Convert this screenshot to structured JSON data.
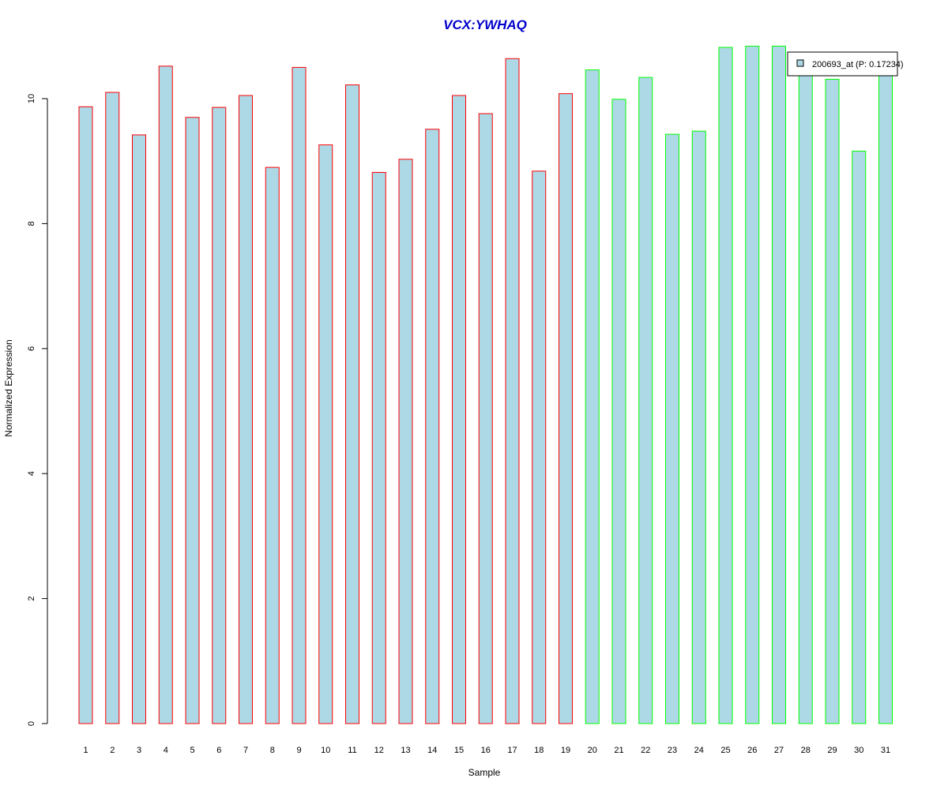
{
  "chart_data": {
    "type": "bar",
    "title": "VCX:YWHAQ",
    "xlabel": "Sample",
    "ylabel": "Normalized Expression",
    "categories": [
      "1",
      "2",
      "3",
      "4",
      "5",
      "6",
      "7",
      "8",
      "9",
      "10",
      "11",
      "12",
      "13",
      "14",
      "15",
      "16",
      "17",
      "18",
      "19",
      "20",
      "21",
      "22",
      "23",
      "24",
      "25",
      "26",
      "27",
      "28",
      "29",
      "30",
      "31"
    ],
    "series": [
      {
        "name": "200693_at (P: 0.17234)",
        "values": [
          9.87,
          10.1,
          9.42,
          10.52,
          9.7,
          9.86,
          10.05,
          8.9,
          10.5,
          9.26,
          10.22,
          8.82,
          9.03,
          9.51,
          10.05,
          9.76,
          10.64,
          8.84,
          10.08,
          10.46,
          9.99,
          10.34,
          9.43,
          9.48,
          10.82,
          10.84,
          10.84,
          10.4,
          10.31,
          9.16,
          10.4
        ]
      }
    ],
    "group_borders": [
      "red",
      "red",
      "red",
      "red",
      "red",
      "red",
      "red",
      "red",
      "red",
      "red",
      "red",
      "red",
      "red",
      "red",
      "red",
      "red",
      "red",
      "red",
      "red",
      "green",
      "green",
      "green",
      "green",
      "green",
      "green",
      "green",
      "green",
      "green",
      "green",
      "green",
      "green"
    ],
    "ylim": [
      0,
      10.95
    ],
    "yticks": [
      0,
      2,
      4,
      6,
      8,
      10
    ],
    "grid": false,
    "legend_position": "top-right",
    "colors": {
      "title": "#0000CC",
      "bar_fill": "#ADD8E6",
      "group1_border": "#FF0000",
      "group2_border": "#00FF00",
      "axis": "#000000"
    }
  }
}
